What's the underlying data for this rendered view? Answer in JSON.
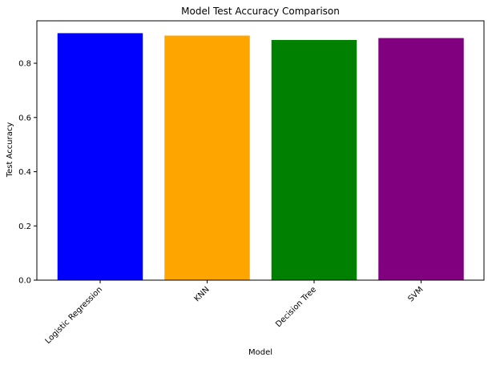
{
  "chart_data": {
    "type": "bar",
    "title": "Model Test Accuracy Comparison",
    "xlabel": "Model",
    "ylabel": "Test Accuracy",
    "categories": [
      "Logistic Regression",
      "KNN",
      "Decision Tree",
      "SVM"
    ],
    "values": [
      0.911,
      0.902,
      0.886,
      0.893
    ],
    "colors": [
      "#0000ff",
      "#ffa500",
      "#008000",
      "#800080"
    ],
    "ylim": [
      0,
      0.9566
    ],
    "yticks": [
      0.0,
      0.2,
      0.4,
      0.6,
      0.8
    ],
    "ytick_labels": [
      "0.0",
      "0.2",
      "0.4",
      "0.6",
      "0.8"
    ],
    "xtick_rotation": 45,
    "grid": false,
    "legend": "none"
  }
}
